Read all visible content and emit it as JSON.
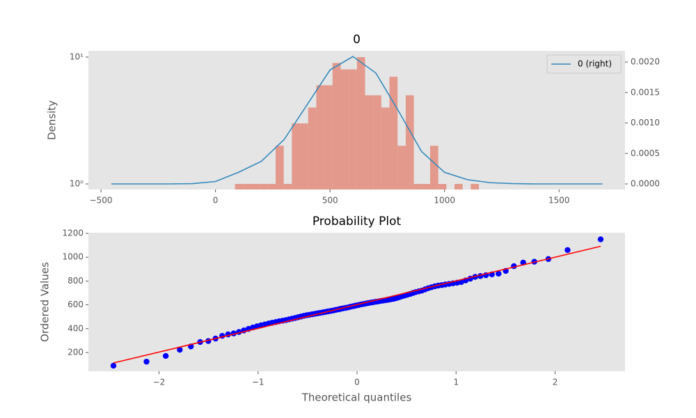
{
  "chart_data": [
    {
      "type": "histogram",
      "title": "0",
      "ylabel": "Density",
      "bins": [
        85,
        120.5,
        156,
        191.5,
        227,
        262.5,
        298,
        333.5,
        369,
        404.5,
        440,
        475.5,
        511,
        546.5,
        582,
        617.5,
        653,
        688.5,
        724,
        759.5,
        795,
        830.5,
        866,
        901.5,
        937,
        972.5,
        1008,
        1043.5,
        1079,
        1114.5,
        1150
      ],
      "values": [
        1,
        1,
        1,
        1,
        1,
        2,
        1,
        3,
        3,
        4,
        6,
        6,
        9,
        8,
        8,
        10,
        5,
        5,
        4,
        7,
        2,
        5,
        1,
        1,
        2,
        1,
        0,
        1,
        0,
        1
      ],
      "color": "#e3998c",
      "yscale": "log",
      "xlim": [
        -555,
        1788
      ],
      "xticks": [
        {
          "value": -500,
          "label": "−500"
        },
        0,
        500,
        1000,
        1500
      ],
      "ylim": [
        0.904,
        11.2
      ],
      "yticks": [
        {
          "value": 1,
          "label": "10⁰"
        },
        {
          "value": 10,
          "label": "10¹"
        }
      ],
      "y2lim": [
        -9.14e-05,
        0.002183
      ],
      "y2ticks": [
        {
          "value": 0,
          "label": "0.0000"
        },
        {
          "value": 0.0005,
          "label": "0.0005"
        },
        {
          "value": 0.001,
          "label": "0.0010"
        },
        {
          "value": 0.0015,
          "label": "0.0015"
        },
        {
          "value": 0.002,
          "label": "0.0020"
        }
      ],
      "legend": "upper right",
      "series": [
        {
          "name": "0 (right)",
          "color": "#348abd",
          "axis": "y2",
          "x": [
            -455,
            -300,
            -200,
            -100,
            0,
            100,
            200,
            300,
            400,
            500,
            600,
            700,
            800,
            900,
            1000,
            1100,
            1200,
            1300,
            1400,
            1500,
            1690
          ],
          "values": [
            0,
            0,
            0,
            5e-06,
            4e-05,
            0.00019,
            0.00037,
            0.00073,
            0.0013,
            0.00187,
            0.00209,
            0.00182,
            0.00119,
            0.00053,
            0.00019,
            7e-05,
            2e-05,
            5e-06,
            0,
            0,
            0
          ]
        }
      ]
    },
    {
      "type": "scatter",
      "title": "Probability Plot",
      "xlabel": "Theoretical quantiles",
      "ylabel": "Ordered Values",
      "xlim": [
        -2.713,
        2.706
      ],
      "xticks": [
        {
          "value": -2,
          "label": "−2"
        },
        {
          "value": -1,
          "label": "−1"
        },
        0,
        1,
        2
      ],
      "ylim": [
        42,
        1206
      ],
      "yticks": [
        200,
        400,
        600,
        800,
        1000,
        1200
      ],
      "series": [
        {
          "type": "scatter",
          "color": "#0000ff",
          "x": [
            -2.46,
            -2.126,
            -1.932,
            -1.79,
            -1.678,
            -1.584,
            -1.502,
            -1.429,
            -1.362,
            -1.302,
            -1.246,
            -1.193,
            -1.144,
            -1.097,
            -1.052,
            -1.01,
            -0.969,
            -0.93,
            -0.892,
            -0.856,
            -0.82,
            -0.786,
            -0.752,
            -0.719,
            -0.687,
            -0.656,
            -0.625,
            -0.595,
            -0.566,
            -0.537,
            -0.508,
            -0.48,
            -0.452,
            -0.425,
            -0.398,
            -0.371,
            -0.344,
            -0.318,
            -0.292,
            -0.266,
            -0.24,
            -0.214,
            -0.188,
            -0.163,
            -0.138,
            -0.113,
            -0.088,
            -0.063,
            -0.038,
            -0.013,
            0.013,
            0.038,
            0.063,
            0.088,
            0.113,
            0.138,
            0.163,
            0.188,
            0.214,
            0.24,
            0.266,
            0.292,
            0.318,
            0.344,
            0.371,
            0.398,
            0.425,
            0.452,
            0.48,
            0.508,
            0.537,
            0.566,
            0.595,
            0.625,
            0.656,
            0.687,
            0.719,
            0.752,
            0.786,
            0.82,
            0.856,
            0.892,
            0.93,
            0.969,
            1.01,
            1.052,
            1.097,
            1.144,
            1.193,
            1.246,
            1.302,
            1.362,
            1.429,
            1.502,
            1.584,
            1.678,
            1.79,
            1.932,
            2.126,
            2.46
          ],
          "values": [
            89,
            123,
            171,
            223,
            251,
            288,
            296,
            317,
            340,
            352,
            360,
            372,
            385,
            398,
            410,
            420,
            428,
            436,
            444,
            450,
            456,
            462,
            467,
            472,
            478,
            484,
            490,
            496,
            502,
            508,
            513,
            517,
            521,
            525,
            529,
            533,
            537,
            541,
            545,
            549,
            553,
            558,
            562,
            567,
            571,
            575,
            579,
            585,
            589,
            594,
            598,
            603,
            607,
            611,
            615,
            619,
            622,
            626,
            629,
            633,
            636,
            640,
            643,
            647,
            651,
            657,
            664,
            671,
            678,
            685,
            692,
            700,
            708,
            714,
            720,
            730,
            740,
            748,
            756,
            762,
            766,
            771,
            776,
            781,
            786,
            791,
            805,
            820,
            835,
            842,
            849,
            856,
            862,
            885,
            925,
            955,
            962,
            985,
            1060,
            1150
          ]
        },
        {
          "type": "line",
          "color": "#ff0000",
          "x": [
            -2.46,
            2.46
          ],
          "values": [
            112,
            1092
          ]
        }
      ]
    }
  ]
}
